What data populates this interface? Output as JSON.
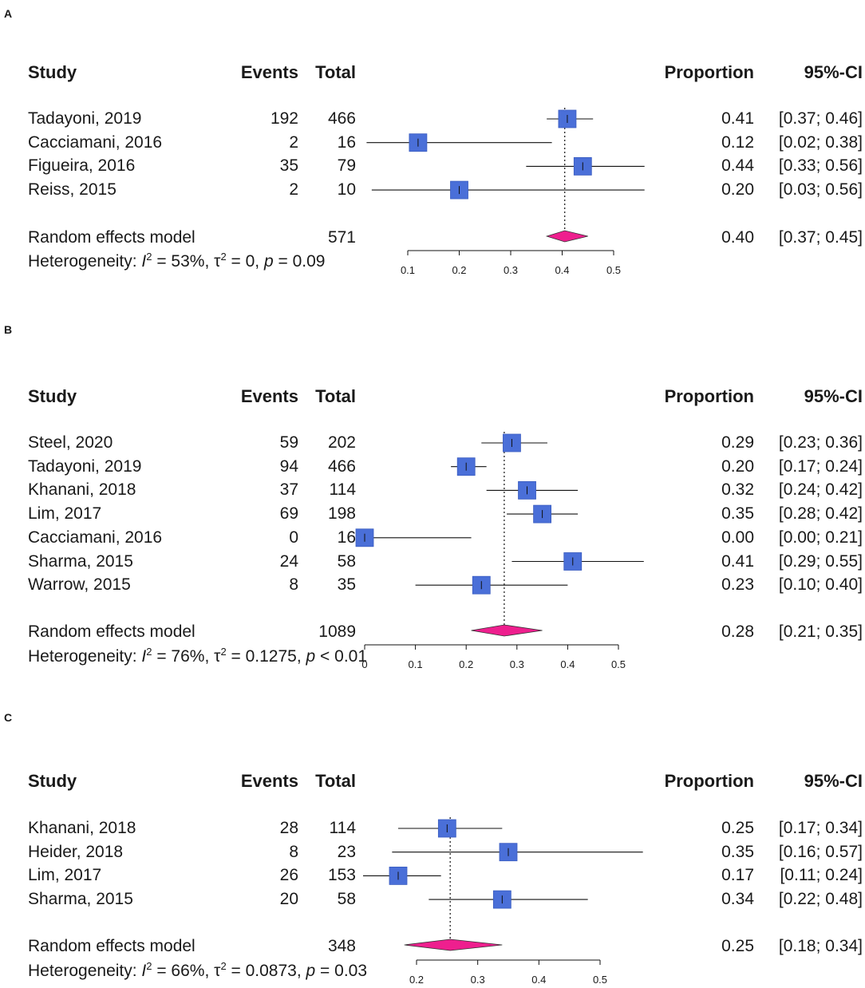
{
  "panels": [
    {
      "label": "A",
      "headers": {
        "study": "Study",
        "events": "Events",
        "total": "Total",
        "proportion": "Proportion",
        "ci": "95%-CI"
      },
      "studies": [
        {
          "name": "Tadayoni, 2019",
          "events": "192",
          "total": "466",
          "prop": "0.41",
          "ci": "[0.37; 0.46]",
          "p": 0.41,
          "lo": 0.37,
          "hi": 0.46
        },
        {
          "name": "Cacciamani, 2016",
          "events": "2",
          "total": "16",
          "prop": "0.12",
          "ci": "[0.02; 0.38]",
          "p": 0.12,
          "lo": 0.02,
          "hi": 0.38
        },
        {
          "name": "Figueira, 2016",
          "events": "35",
          "total": "79",
          "prop": "0.44",
          "ci": "[0.33; 0.56]",
          "p": 0.44,
          "lo": 0.33,
          "hi": 0.56
        },
        {
          "name": "Reiss, 2015",
          "events": "2",
          "total": "10",
          "prop": "0.20",
          "ci": "[0.03; 0.56]",
          "p": 0.2,
          "lo": 0.03,
          "hi": 0.56
        }
      ],
      "model": {
        "name": "Random effects model",
        "total": "571",
        "prop": "0.40",
        "ci": "[0.37; 0.45]",
        "p": 0.405,
        "lo": 0.37,
        "hi": 0.45
      },
      "het": {
        "prefix": "Heterogeneity: ",
        "I": "I",
        "i2val": " = 53%, ",
        "tau": "τ",
        "tau2val": " = 0, ",
        "p": "p",
        "pval": " = 0.09"
      },
      "axis": {
        "min": 0.1,
        "max": 0.5,
        "ticks": [
          "0.1",
          "0.2",
          "0.3",
          "0.4",
          "0.5"
        ]
      }
    },
    {
      "label": "B",
      "headers": {
        "study": "Study",
        "events": "Events",
        "total": "Total",
        "proportion": "Proportion",
        "ci": "95%-CI"
      },
      "studies": [
        {
          "name": "Steel, 2020",
          "events": "59",
          "total": "202",
          "prop": "0.29",
          "ci": "[0.23; 0.36]",
          "p": 0.29,
          "lo": 0.23,
          "hi": 0.36
        },
        {
          "name": "Tadayoni, 2019",
          "events": "94",
          "total": "466",
          "prop": "0.20",
          "ci": "[0.17; 0.24]",
          "p": 0.2,
          "lo": 0.17,
          "hi": 0.24
        },
        {
          "name": "Khanani, 2018",
          "events": "37",
          "total": "114",
          "prop": "0.32",
          "ci": "[0.24; 0.42]",
          "p": 0.32,
          "lo": 0.24,
          "hi": 0.42
        },
        {
          "name": "Lim, 2017",
          "events": "69",
          "total": "198",
          "prop": "0.35",
          "ci": "[0.28; 0.42]",
          "p": 0.35,
          "lo": 0.28,
          "hi": 0.42
        },
        {
          "name": "Cacciamani, 2016",
          "events": "0",
          "total": "16",
          "prop": "0.00",
          "ci": "[0.00; 0.21]",
          "p": 0.0,
          "lo": 0.0,
          "hi": 0.21
        },
        {
          "name": "Sharma, 2015",
          "events": "24",
          "total": "58",
          "prop": "0.41",
          "ci": "[0.29; 0.55]",
          "p": 0.41,
          "lo": 0.29,
          "hi": 0.55
        },
        {
          "name": "Warrow, 2015",
          "events": "8",
          "total": "35",
          "prop": "0.23",
          "ci": "[0.10; 0.40]",
          "p": 0.23,
          "lo": 0.1,
          "hi": 0.4
        }
      ],
      "model": {
        "name": "Random effects model",
        "total": "1089",
        "prop": "0.28",
        "ci": "[0.21; 0.35]",
        "p": 0.275,
        "lo": 0.21,
        "hi": 0.35
      },
      "het": {
        "prefix": "Heterogeneity: ",
        "I": "I",
        "i2val": " = 76%, ",
        "tau": "τ",
        "tau2val": " = 0.1275, ",
        "p": "p",
        "pval": " < 0.01"
      },
      "axis": {
        "min": 0,
        "max": 0.5,
        "ticks": [
          "0",
          "0.1",
          "0.2",
          "0.3",
          "0.4",
          "0.5"
        ]
      }
    },
    {
      "label": "C",
      "headers": {
        "study": "Study",
        "events": "Events",
        "total": "Total",
        "proportion": "Proportion",
        "ci": "95%-CI"
      },
      "studies": [
        {
          "name": "Khanani, 2018",
          "events": "28",
          "total": "114",
          "prop": "0.25",
          "ci": "[0.17; 0.34]",
          "p": 0.25,
          "lo": 0.17,
          "hi": 0.34
        },
        {
          "name": "Heider, 2018",
          "events": "8",
          "total": "23",
          "prop": "0.35",
          "ci": "[0.16; 0.57]",
          "p": 0.35,
          "lo": 0.16,
          "hi": 0.57
        },
        {
          "name": "Lim, 2017",
          "events": "26",
          "total": "153",
          "prop": "0.17",
          "ci": "[0.11; 0.24]",
          "p": 0.17,
          "lo": 0.11,
          "hi": 0.24
        },
        {
          "name": "Sharma, 2015",
          "events": "20",
          "total": "58",
          "prop": "0.34",
          "ci": "[0.22; 0.48]",
          "p": 0.34,
          "lo": 0.22,
          "hi": 0.48
        }
      ],
      "model": {
        "name": "Random effects model",
        "total": "348",
        "prop": "0.25",
        "ci": "[0.18; 0.34]",
        "p": 0.255,
        "lo": 0.18,
        "hi": 0.34
      },
      "het": {
        "prefix": "Heterogeneity: ",
        "I": "I",
        "i2val": " = 66%, ",
        "tau": "τ",
        "tau2val": " = 0.0873, ",
        "p": "p",
        "pval": " = 0.03"
      },
      "axis": {
        "min": 0.2,
        "max": 0.5,
        "ticks": [
          "0.2",
          "0.3",
          "0.4",
          "0.5"
        ]
      }
    }
  ],
  "colors": {
    "square": "#4a6fd8",
    "diamond": "#ee1f8e",
    "line": "#111111"
  },
  "chart_data": [
    {
      "type": "forest",
      "panel": "A",
      "categories": [
        "Tadayoni, 2019",
        "Cacciamani, 2016",
        "Figueira, 2016",
        "Reiss, 2015"
      ],
      "values": [
        0.41,
        0.12,
        0.44,
        0.2
      ],
      "ci_low": [
        0.37,
        0.02,
        0.33,
        0.03
      ],
      "ci_high": [
        0.46,
        0.38,
        0.56,
        0.56
      ],
      "pooled": {
        "value": 0.4,
        "ci": [
          0.37,
          0.45
        ]
      },
      "xlim": [
        0.1,
        0.5
      ],
      "xlabel": "Proportion"
    },
    {
      "type": "forest",
      "panel": "B",
      "categories": [
        "Steel, 2020",
        "Tadayoni, 2019",
        "Khanani, 2018",
        "Lim, 2017",
        "Cacciamani, 2016",
        "Sharma, 2015",
        "Warrow, 2015"
      ],
      "values": [
        0.29,
        0.2,
        0.32,
        0.35,
        0.0,
        0.41,
        0.23
      ],
      "ci_low": [
        0.23,
        0.17,
        0.24,
        0.28,
        0.0,
        0.29,
        0.1
      ],
      "ci_high": [
        0.36,
        0.24,
        0.42,
        0.42,
        0.21,
        0.55,
        0.4
      ],
      "pooled": {
        "value": 0.28,
        "ci": [
          0.21,
          0.35
        ]
      },
      "xlim": [
        0,
        0.5
      ],
      "xlabel": "Proportion"
    },
    {
      "type": "forest",
      "panel": "C",
      "categories": [
        "Khanani, 2018",
        "Heider, 2018",
        "Lim, 2017",
        "Sharma, 2015"
      ],
      "values": [
        0.25,
        0.35,
        0.17,
        0.34
      ],
      "ci_low": [
        0.17,
        0.16,
        0.11,
        0.22
      ],
      "ci_high": [
        0.34,
        0.57,
        0.24,
        0.48
      ],
      "pooled": {
        "value": 0.25,
        "ci": [
          0.18,
          0.34
        ]
      },
      "xlim": [
        0.2,
        0.5
      ],
      "xlabel": "Proportion"
    }
  ]
}
